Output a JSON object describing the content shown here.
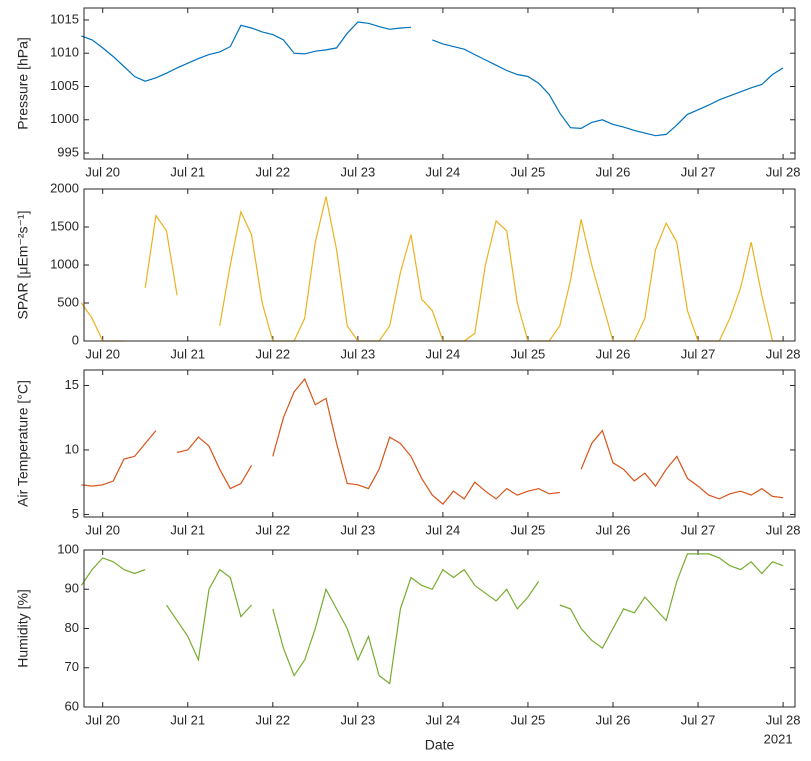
{
  "chart_data": [
    {
      "type": "line",
      "ylabel": "Pressure [hPa]",
      "color": "#0072bd",
      "x": [
        19.75,
        19.875,
        20,
        20.125,
        20.25,
        20.375,
        20.5,
        20.625,
        20.75,
        20.875,
        21,
        21.125,
        21.25,
        21.375,
        21.5,
        21.625,
        21.75,
        21.875,
        22,
        22.125,
        22.25,
        22.375,
        22.5,
        22.625,
        22.75,
        22.875,
        23,
        23.125,
        23.25,
        23.375,
        23.5,
        23.625,
        23.75,
        23.875,
        24,
        24.125,
        24.25,
        24.375,
        24.5,
        24.625,
        24.75,
        24.875,
        25,
        25.125,
        25.25,
        25.375,
        25.5,
        25.625,
        25.75,
        25.875,
        26,
        26.125,
        26.25,
        26.375,
        26.5,
        26.625,
        26.75,
        26.875,
        27,
        27.125,
        27.25,
        27.375,
        27.5,
        27.625,
        27.75,
        27.875,
        28
      ],
      "values": [
        1012.6,
        1012.0,
        1010.8,
        1009.5,
        1008.0,
        1006.5,
        1005.8,
        1006.3,
        1007.0,
        1007.8,
        1008.5,
        1009.2,
        1009.8,
        1010.2,
        1011.0,
        1014.2,
        1013.8,
        1013.2,
        1012.8,
        1012.0,
        1010.0,
        1009.9,
        1010.3,
        1010.5,
        1010.8,
        1013.0,
        1014.7,
        1014.5,
        1014.0,
        1013.6,
        1013.8,
        1013.9,
        null,
        1012.0,
        1011.4,
        1011.0,
        1010.6,
        1009.8,
        1009.0,
        1008.2,
        1007.4,
        1006.8,
        1006.5,
        1005.5,
        1003.8,
        1001.0,
        998.8,
        998.7,
        999.6,
        1000.0,
        999.3,
        998.9,
        998.4,
        998.0,
        997.6,
        997.8,
        999.2,
        1000.8,
        1001.5,
        1002.2,
        1003.0,
        1003.6,
        1004.2,
        1004.8,
        1005.3,
        1006.8,
        1007.8
      ],
      "xlim": [
        19.78,
        28.14
      ],
      "xticks": [
        {
          "value": 20,
          "label": "Jul 20"
        },
        {
          "value": 21,
          "label": "Jul 21"
        },
        {
          "value": 22,
          "label": "Jul 22"
        },
        {
          "value": 23,
          "label": "Jul 23"
        },
        {
          "value": 24,
          "label": "Jul 24"
        },
        {
          "value": 25,
          "label": "Jul 25"
        },
        {
          "value": 26,
          "label": "Jul 26"
        },
        {
          "value": 27,
          "label": "Jul 27"
        },
        {
          "value": 28,
          "label": "Jul 28"
        }
      ],
      "ylim": [
        994.1,
        1016.8
      ],
      "yticks": [
        995,
        1000,
        1005,
        1010,
        1015
      ]
    },
    {
      "type": "line",
      "ylabel": "SPAR [μEm⁻²s⁻¹]",
      "color": "#edb120",
      "x": [
        19.75,
        19.875,
        20,
        20.125,
        20.25,
        20.375,
        20.5,
        20.625,
        20.75,
        20.875,
        21,
        21.125,
        21.25,
        21.375,
        21.5,
        21.625,
        21.75,
        21.875,
        22,
        22.125,
        22.25,
        22.375,
        22.5,
        22.625,
        22.75,
        22.875,
        23,
        23.125,
        23.25,
        23.375,
        23.5,
        23.625,
        23.75,
        23.875,
        24,
        24.125,
        24.25,
        24.375,
        24.5,
        24.625,
        24.75,
        24.875,
        25,
        25.125,
        25.25,
        25.375,
        25.5,
        25.625,
        25.75,
        25.875,
        26,
        26.125,
        26.25,
        26.375,
        26.5,
        26.625,
        26.75,
        26.875,
        27,
        27.125,
        27.25,
        27.375,
        27.5,
        27.625,
        27.75,
        27.875,
        28
      ],
      "values": [
        500,
        300,
        0,
        0,
        0,
        null,
        700,
        1650,
        1450,
        600,
        null,
        null,
        null,
        200,
        1000,
        1700,
        1400,
        500,
        0,
        0,
        0,
        300,
        1300,
        1900,
        1200,
        200,
        0,
        0,
        0,
        200,
        900,
        1400,
        550,
        400,
        0,
        0,
        0,
        100,
        1000,
        1580,
        1450,
        500,
        0,
        0,
        0,
        200,
        800,
        1600,
        1000,
        500,
        0,
        0,
        0,
        300,
        1200,
        1550,
        1300,
        400,
        0,
        0,
        0,
        300,
        700,
        1300,
        600,
        0,
        0
      ],
      "xlim": [
        19.78,
        28.14
      ],
      "xticks": [
        {
          "value": 20,
          "label": "Jul 20"
        },
        {
          "value": 21,
          "label": "Jul 21"
        },
        {
          "value": 22,
          "label": "Jul 22"
        },
        {
          "value": 23,
          "label": "Jul 23"
        },
        {
          "value": 24,
          "label": "Jul 24"
        },
        {
          "value": 25,
          "label": "Jul 25"
        },
        {
          "value": 26,
          "label": "Jul 26"
        },
        {
          "value": 27,
          "label": "Jul 27"
        },
        {
          "value": 28,
          "label": "Jul 28"
        }
      ],
      "ylim": [
        0,
        2000
      ],
      "yticks": [
        0,
        500,
        1000,
        1500,
        2000
      ]
    },
    {
      "type": "line",
      "ylabel": "Air Temperature [°C]",
      "color": "#d95319",
      "x": [
        19.75,
        19.875,
        20,
        20.125,
        20.25,
        20.375,
        20.5,
        20.625,
        20.75,
        20.875,
        21,
        21.125,
        21.25,
        21.375,
        21.5,
        21.625,
        21.75,
        21.875,
        22,
        22.125,
        22.25,
        22.375,
        22.5,
        22.625,
        22.75,
        22.875,
        23,
        23.125,
        23.25,
        23.375,
        23.5,
        23.625,
        23.75,
        23.875,
        24,
        24.125,
        24.25,
        24.375,
        24.5,
        24.625,
        24.75,
        24.875,
        25,
        25.125,
        25.25,
        25.375,
        25.5,
        25.625,
        25.75,
        25.875,
        26,
        26.125,
        26.25,
        26.375,
        26.5,
        26.625,
        26.75,
        26.875,
        27,
        27.125,
        27.25,
        27.375,
        27.5,
        27.625,
        27.75,
        27.875,
        28
      ],
      "values": [
        7.3,
        7.2,
        7.3,
        7.6,
        9.3,
        9.5,
        10.5,
        11.5,
        null,
        9.8,
        10.0,
        11.0,
        10.3,
        8.5,
        7.0,
        7.4,
        8.8,
        null,
        9.5,
        12.5,
        14.5,
        15.5,
        13.5,
        14.0,
        10.5,
        7.4,
        7.3,
        7.0,
        8.5,
        11.0,
        10.5,
        9.5,
        7.8,
        6.5,
        5.8,
        6.8,
        6.2,
        7.5,
        6.8,
        6.2,
        7.0,
        6.5,
        6.8,
        7.0,
        6.6,
        6.7,
        null,
        8.5,
        10.5,
        11.5,
        9.0,
        8.5,
        7.6,
        8.2,
        7.2,
        8.5,
        9.5,
        7.8,
        7.2,
        6.5,
        6.2,
        6.6,
        6.8,
        6.5,
        7.0,
        6.4,
        6.3
      ],
      "xlim": [
        19.78,
        28.14
      ],
      "xticks": [
        {
          "value": 20,
          "label": "Jul 20"
        },
        {
          "value": 21,
          "label": "Jul 21"
        },
        {
          "value": 22,
          "label": "Jul 22"
        },
        {
          "value": 23,
          "label": "Jul 23"
        },
        {
          "value": 24,
          "label": "Jul 24"
        },
        {
          "value": 25,
          "label": "Jul 25"
        },
        {
          "value": 26,
          "label": "Jul 26"
        },
        {
          "value": 27,
          "label": "Jul 27"
        },
        {
          "value": 28,
          "label": "Jul 28"
        }
      ],
      "ylim": [
        4.8,
        16.2
      ],
      "yticks": [
        5,
        10,
        15
      ]
    },
    {
      "type": "line",
      "ylabel": "Humidity [%]",
      "xlabel": "Date",
      "x_secondary_label": "2021",
      "color": "#77ac30",
      "x": [
        19.75,
        19.875,
        20,
        20.125,
        20.25,
        20.375,
        20.5,
        20.625,
        20.75,
        20.875,
        21,
        21.125,
        21.25,
        21.375,
        21.5,
        21.625,
        21.75,
        21.875,
        22,
        22.125,
        22.25,
        22.375,
        22.5,
        22.625,
        22.75,
        22.875,
        23,
        23.125,
        23.25,
        23.375,
        23.5,
        23.625,
        23.75,
        23.875,
        24,
        24.125,
        24.25,
        24.375,
        24.5,
        24.625,
        24.75,
        24.875,
        25,
        25.125,
        25.25,
        25.375,
        25.5,
        25.625,
        25.75,
        25.875,
        26,
        26.125,
        26.25,
        26.375,
        26.5,
        26.625,
        26.75,
        26.875,
        27,
        27.125,
        27.25,
        27.375,
        27.5,
        27.625,
        27.75,
        27.875,
        28
      ],
      "values": [
        91,
        95,
        98,
        97,
        95,
        94,
        95,
        null,
        86,
        82,
        78,
        72,
        90,
        95,
        93,
        83,
        86,
        null,
        85,
        75,
        68,
        72,
        80,
        90,
        85,
        80,
        72,
        78,
        68,
        66,
        85,
        93,
        91,
        90,
        95,
        93,
        95,
        91,
        89,
        87,
        90,
        85,
        88,
        92,
        null,
        86,
        85,
        80,
        77,
        75,
        80,
        85,
        84,
        88,
        85,
        82,
        92,
        99,
        99,
        99,
        98,
        96,
        95,
        97,
        94,
        97,
        96
      ],
      "xlim": [
        19.78,
        28.14
      ],
      "xticks": [
        {
          "value": 20,
          "label": "Jul 20"
        },
        {
          "value": 21,
          "label": "Jul 21"
        },
        {
          "value": 22,
          "label": "Jul 22"
        },
        {
          "value": 23,
          "label": "Jul 23"
        },
        {
          "value": 24,
          "label": "Jul 24"
        },
        {
          "value": 25,
          "label": "Jul 25"
        },
        {
          "value": 26,
          "label": "Jul 26"
        },
        {
          "value": 27,
          "label": "Jul 27"
        },
        {
          "value": 28,
          "label": "Jul 28"
        }
      ],
      "ylim": [
        60,
        100
      ],
      "yticks": [
        60,
        70,
        80,
        90,
        100
      ]
    }
  ]
}
